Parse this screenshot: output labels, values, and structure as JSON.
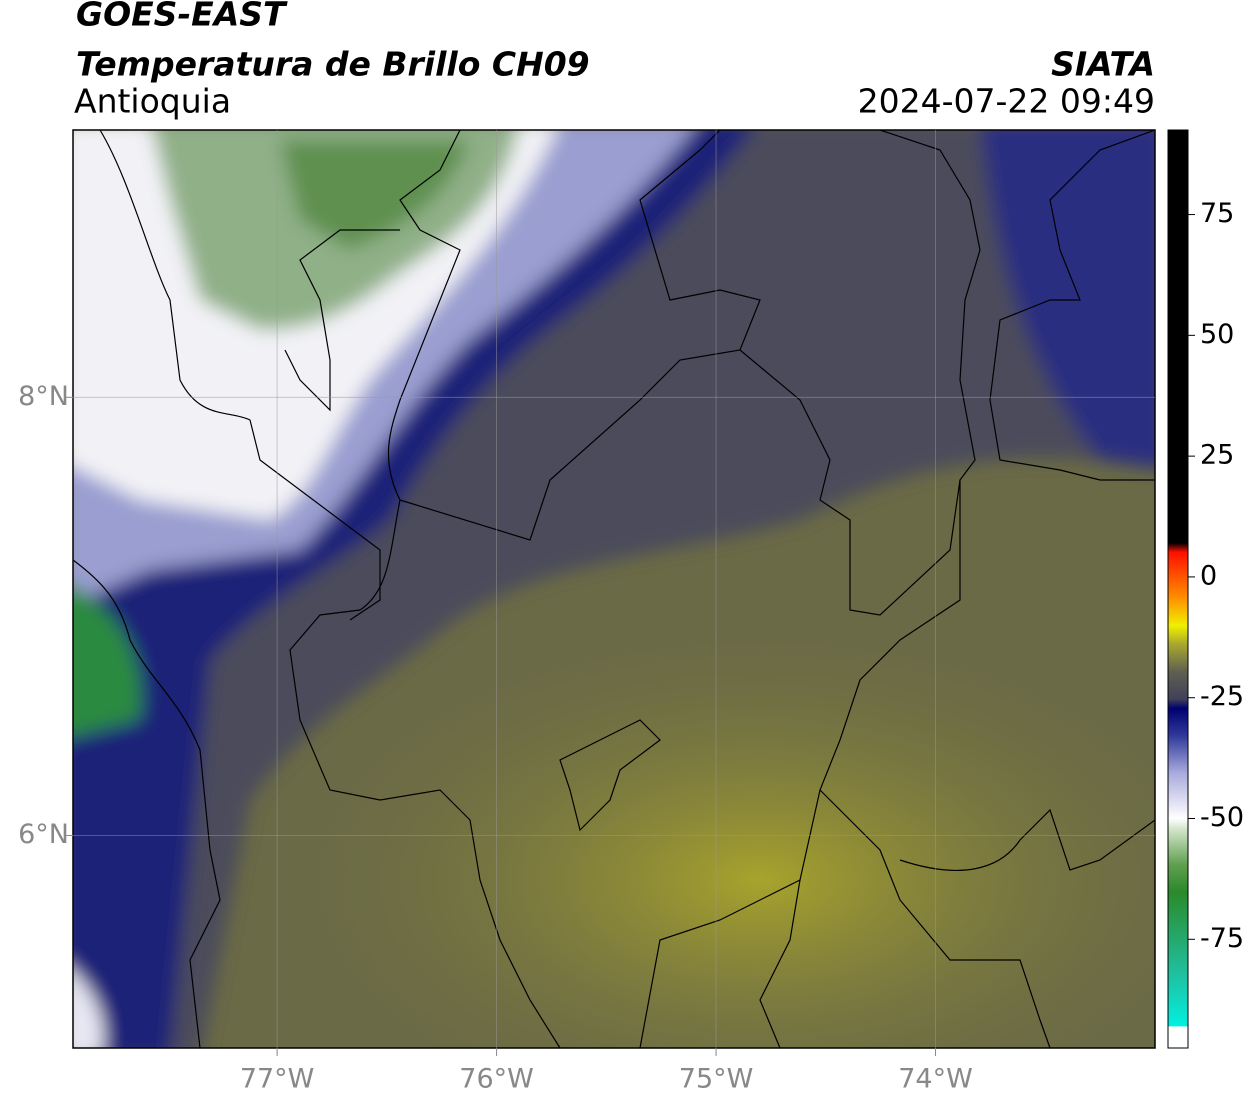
{
  "header": {
    "title": "GOES-EAST",
    "subtitle": "Temperatura de Brillo CH09",
    "region": "Antioquia",
    "source": "SIATA",
    "datetime": "2024-07-22 09:49"
  },
  "map": {
    "lon_range": [
      -77.93,
      -73.0
    ],
    "lat_range": [
      5.03,
      9.22
    ],
    "lon_ticks": [
      {
        "value": -77,
        "label": "77°W"
      },
      {
        "value": -76,
        "label": "76°W"
      },
      {
        "value": -75,
        "label": "75°W"
      },
      {
        "value": -74,
        "label": "74°W"
      }
    ],
    "lat_ticks": [
      {
        "value": 8,
        "label": "8°N"
      },
      {
        "value": 6,
        "label": "6°N"
      }
    ]
  },
  "colorbar": {
    "range": [
      -97.5,
      92.5
    ],
    "ticks": [
      75,
      50,
      25,
      0,
      -25,
      -50,
      -75
    ]
  }
}
